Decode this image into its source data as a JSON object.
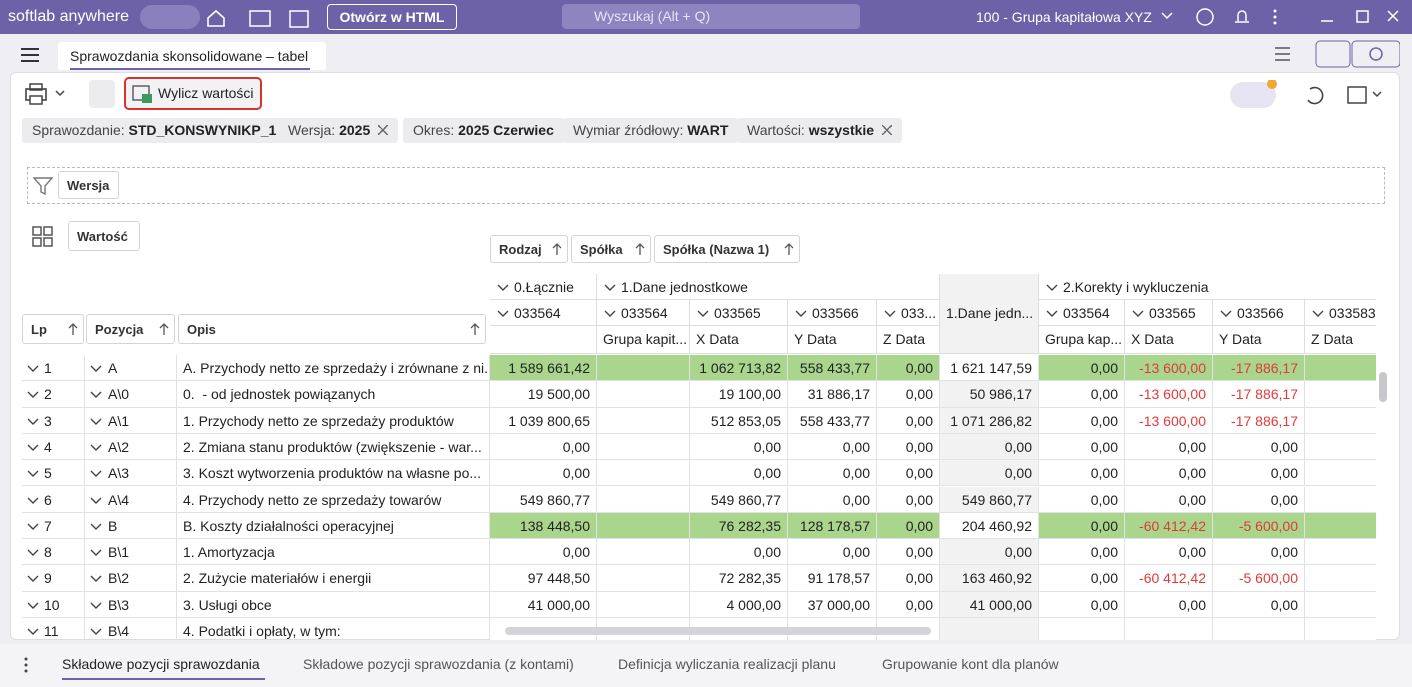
{
  "titlebar": {
    "app": "softlab anywhere",
    "open_html": "Otwórz w HTML",
    "search": "Wyszukaj (Alt + Q)",
    "company": "100 - Grupa kapitałowa XYZ"
  },
  "tab": "Sprawozdania skonsolidowane – tabel",
  "toolbar": {
    "calculate": "Wylicz wartości"
  },
  "filters": [
    {
      "label": "Sprawozdanie:",
      "value": "STD_KONSWYNIKP_1",
      "removable": false
    },
    {
      "label": "Wersja:",
      "value": "2025",
      "removable": true
    },
    {
      "label": "Okres:",
      "value": "2025 Czerwiec",
      "removable": false
    },
    {
      "label": "Wymiar źródłowy:",
      "value": "WART",
      "removable": false
    },
    {
      "label": "Wartości:",
      "value": "wszystkie",
      "removable": true
    }
  ],
  "filter_fields": [
    "Wersja"
  ],
  "data_fields": [
    "Wartość"
  ],
  "column_fields": [
    "Rodzaj",
    "Spółka",
    "Spółka (Nazwa 1)"
  ],
  "row_fields": [
    "Lp",
    "Pozycja",
    "Opis"
  ],
  "column_groups": [
    {
      "label": "0.Łącznie",
      "columns": [
        {
          "code": "033564",
          "name": null
        }
      ]
    },
    {
      "label": "1.Dane jednostkowe",
      "columns": [
        {
          "code": "033564",
          "name": "Grupa kapit..."
        },
        {
          "code": "033565",
          "name": "X Data"
        },
        {
          "code": "033566",
          "name": "Y Data"
        },
        {
          "code": "033...",
          "name": "Z Data"
        }
      ]
    },
    {
      "label": "1.Dane jedn...",
      "columns": []
    },
    {
      "label": "2.Korekty i wykluczenia",
      "columns": [
        {
          "code": "033564",
          "name": "Grupa kap..."
        },
        {
          "code": "033565",
          "name": "X Data"
        },
        {
          "code": "033566",
          "name": "Y Data"
        },
        {
          "code": "033583",
          "name": "Z Data"
        }
      ]
    }
  ],
  "rows": [
    {
      "lp": "1",
      "pozycja": "A",
      "opis": "A. Przychody netto ze sprzedaży i zrównane z ni...",
      "highlight": true,
      "cells": [
        "1 589 661,42",
        null,
        "1 062 713,82",
        "558 433,77",
        "0,00",
        "1 621 147,59",
        "0,00",
        "-13 600,00",
        "-17 886,17",
        null
      ]
    },
    {
      "lp": "2",
      "pozycja": "A\\0",
      "opis": "0.  - od jednostek powiązanych",
      "highlight": false,
      "cells": [
        "19 500,00",
        null,
        "19 100,00",
        "31 886,17",
        "0,00",
        "50 986,17",
        "0,00",
        "-13 600,00",
        "-17 886,17",
        null
      ]
    },
    {
      "lp": "3",
      "pozycja": "A\\1",
      "opis": "1. Przychody netto ze sprzedaży produktów",
      "highlight": false,
      "cells": [
        "1 039 800,65",
        null,
        "512 853,05",
        "558 433,77",
        "0,00",
        "1 071 286,82",
        "0,00",
        "-13 600,00",
        "-17 886,17",
        null
      ]
    },
    {
      "lp": "4",
      "pozycja": "A\\2",
      "opis": "2. Zmiana stanu produktów (zwiększenie - war...",
      "highlight": false,
      "cells": [
        "0,00",
        null,
        "0,00",
        "0,00",
        "0,00",
        "0,00",
        "0,00",
        "0,00",
        "0,00",
        null
      ]
    },
    {
      "lp": "5",
      "pozycja": "A\\3",
      "opis": "3. Koszt wytworzenia produktów na własne po...",
      "highlight": false,
      "cells": [
        "0,00",
        null,
        "0,00",
        "0,00",
        "0,00",
        "0,00",
        "0,00",
        "0,00",
        "0,00",
        null
      ]
    },
    {
      "lp": "6",
      "pozycja": "A\\4",
      "opis": "4. Przychody netto ze sprzedaży towarów",
      "highlight": false,
      "cells": [
        "549 860,77",
        null,
        "549 860,77",
        "0,00",
        "0,00",
        "549 860,77",
        "0,00",
        "0,00",
        "0,00",
        null
      ]
    },
    {
      "lp": "7",
      "pozycja": "B",
      "opis": "B. Koszty działalności operacyjnej",
      "highlight": true,
      "cells": [
        "138 448,50",
        null,
        "76 282,35",
        "128 178,57",
        "0,00",
        "204 460,92",
        "0,00",
        "-60 412,42",
        "-5 600,00",
        null
      ]
    },
    {
      "lp": "8",
      "pozycja": "B\\1",
      "opis": "1. Amortyzacja",
      "highlight": false,
      "cells": [
        "0,00",
        null,
        "0,00",
        "0,00",
        "0,00",
        "0,00",
        "0,00",
        "0,00",
        "0,00",
        null
      ]
    },
    {
      "lp": "9",
      "pozycja": "B\\2",
      "opis": "2. Zużycie materiałów i energii",
      "highlight": false,
      "cells": [
        "97 448,50",
        null,
        "72 282,35",
        "91 178,57",
        "0,00",
        "163 460,92",
        "0,00",
        "-60 412,42",
        "-5 600,00",
        null
      ]
    },
    {
      "lp": "10",
      "pozycja": "B\\3",
      "opis": "3. Usługi obce",
      "highlight": false,
      "cells": [
        "41 000,00",
        null,
        "4 000,00",
        "37 000,00",
        "0,00",
        "41 000,00",
        "0,00",
        "0,00",
        "0,00",
        null
      ]
    },
    {
      "lp": "11",
      "pozycja": "B\\4",
      "opis": "4. Podatki i opłaty, w tym:",
      "highlight": false,
      "cells": [
        null,
        null,
        null,
        null,
        null,
        null,
        null,
        null,
        null,
        null
      ]
    }
  ],
  "bottom_tabs": [
    "Składowe pozycji sprawozdania",
    "Składowe pozycji sprawozdania (z kontami)",
    "Definicja wyliczania realizacji planu",
    "Grupowanie kont dla planów"
  ]
}
